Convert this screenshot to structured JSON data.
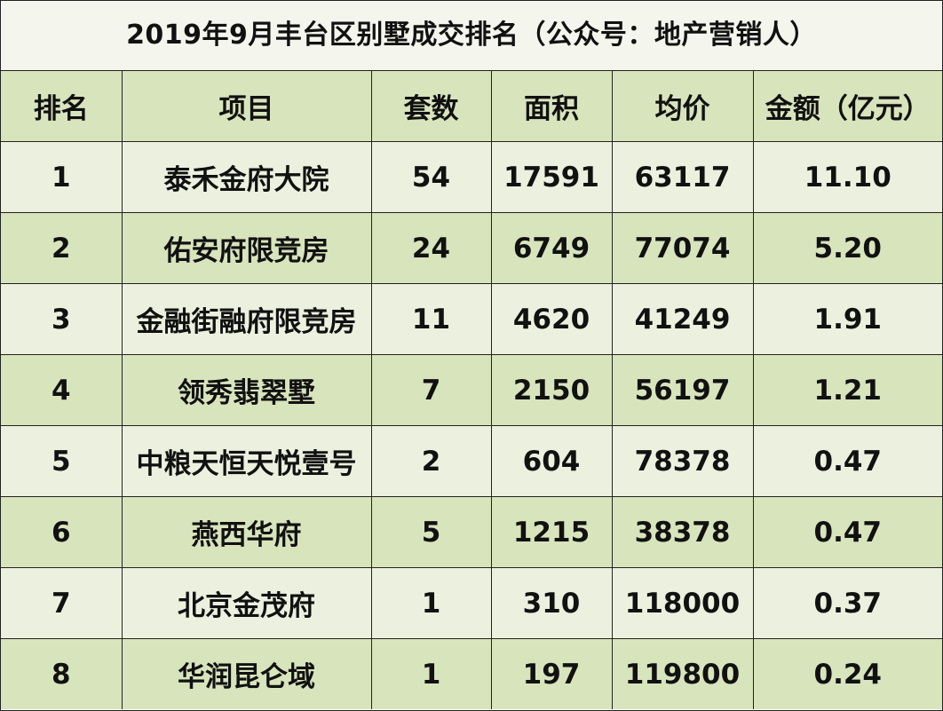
{
  "title": "2019年9月丰台区别墅成交排名（公众号：地产营销人）",
  "headers": [
    "排名",
    "项目",
    "套数",
    "面积",
    "均价",
    "金额（亿元）"
  ],
  "rows": [
    {
      "rank": "1",
      "project": "泰禾金府大院",
      "units": "54",
      "area": "17591",
      "avg_price": "63117",
      "amount": "11.10"
    },
    {
      "rank": "2",
      "project": "佑安府限竞房",
      "units": "24",
      "area": "6749",
      "avg_price": "77074",
      "amount": "5.20"
    },
    {
      "rank": "3",
      "project": "金融街融府限竞房",
      "units": "11",
      "area": "4620",
      "avg_price": "41249",
      "amount": "1.91"
    },
    {
      "rank": "4",
      "project": "领秀翡翠墅",
      "units": "7",
      "area": "2150",
      "avg_price": "56197",
      "amount": "1.21"
    },
    {
      "rank": "5",
      "project": "中粮天恒天悦壹号",
      "units": "2",
      "area": "604",
      "avg_price": "78378",
      "amount": "0.47"
    },
    {
      "rank": "6",
      "project": "燕西华府",
      "units": "5",
      "area": "1215",
      "avg_price": "38378",
      "amount": "0.47"
    },
    {
      "rank": "7",
      "project": "北京金茂府",
      "units": "1",
      "area": "310",
      "avg_price": "118000",
      "amount": "0.37"
    },
    {
      "rank": "8",
      "project": "华润昆仑域",
      "units": "1",
      "area": "197",
      "avg_price": "119800",
      "amount": "0.24"
    }
  ],
  "colors": {
    "header_bg": "#d8e4bc",
    "row_light": "#ebf1de",
    "row_dark": "#d8e4bc",
    "title_bg": "#f4f6ee",
    "border": "#222222"
  }
}
